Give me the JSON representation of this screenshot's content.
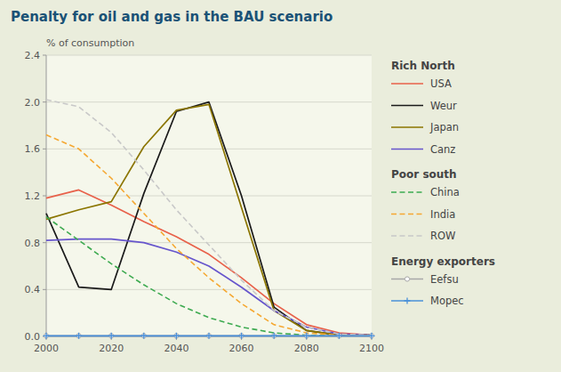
{
  "chart_data": {
    "type": "line",
    "title": "Penalty for oil and gas in the BAU scenario",
    "y_label": "% of consumption",
    "x": [
      2000,
      2010,
      2020,
      2030,
      2040,
      2050,
      2060,
      2070,
      2080,
      2090,
      2100
    ],
    "xlim": [
      2000,
      2100
    ],
    "xticks": [
      2000,
      2020,
      2040,
      2060,
      2080,
      2100
    ],
    "ylim": [
      0,
      2.4
    ],
    "yticks": [
      {
        "value": 0,
        "label": "0.0"
      },
      0.4,
      0.8,
      1.2,
      1.6,
      {
        "value": 2,
        "label": "2.0"
      },
      2.4
    ],
    "grid": true,
    "series": [
      {
        "name": "USA",
        "group": "Rich North",
        "color": "#e8614a",
        "line_style": "solid",
        "values": [
          1.18,
          1.25,
          1.12,
          0.98,
          0.85,
          0.7,
          0.5,
          0.28,
          0.1,
          0.03,
          0.01
        ]
      },
      {
        "name": "Weur",
        "group": "Rich North",
        "color": "#1a1a1a",
        "line_style": "solid",
        "values": [
          1.05,
          0.42,
          0.4,
          1.22,
          1.92,
          2.0,
          1.2,
          0.25,
          0.05,
          0.01,
          0.01
        ]
      },
      {
        "name": "Japan",
        "group": "Rich North",
        "color": "#8b7500",
        "line_style": "solid",
        "values": [
          1.0,
          1.08,
          1.15,
          1.62,
          1.93,
          1.98,
          1.1,
          0.22,
          0.05,
          0.01,
          0.01
        ]
      },
      {
        "name": "Canz",
        "group": "Rich North",
        "color": "#6655cc",
        "line_style": "solid",
        "values": [
          0.82,
          0.83,
          0.83,
          0.8,
          0.72,
          0.6,
          0.42,
          0.22,
          0.08,
          0.02,
          0.01
        ]
      },
      {
        "name": "China",
        "group": "Poor south",
        "color": "#3daa50",
        "line_style": "dashed",
        "values": [
          1.02,
          0.82,
          0.62,
          0.44,
          0.28,
          0.16,
          0.08,
          0.03,
          0.01,
          0.01,
          0.01
        ]
      },
      {
        "name": "India",
        "group": "Poor south",
        "color": "#f5a832",
        "line_style": "dashed",
        "values": [
          1.72,
          1.6,
          1.35,
          1.05,
          0.75,
          0.5,
          0.28,
          0.1,
          0.03,
          0.01,
          0.01
        ]
      },
      {
        "name": "ROW",
        "group": "Poor south",
        "color": "#c8c8c8",
        "line_style": "dashed",
        "values": [
          2.02,
          1.96,
          1.74,
          1.42,
          1.08,
          0.78,
          0.48,
          0.22,
          0.08,
          0.02,
          0.01
        ]
      },
      {
        "name": "Eefsu",
        "group": "Energy exporters",
        "color": "#a8a8a8",
        "line_style": "solid",
        "marker": "circle",
        "values": [
          0.005,
          0.005,
          0.005,
          0.005,
          0.005,
          0.005,
          0.005,
          0.005,
          0.005,
          0.005,
          0.005
        ]
      },
      {
        "name": "Mopec",
        "group": "Energy exporters",
        "color": "#4a90d9",
        "line_style": "solid",
        "marker": "plus",
        "values": [
          0.005,
          0.005,
          0.005,
          0.005,
          0.005,
          0.005,
          0.005,
          0.005,
          0.005,
          0.005,
          0.005
        ]
      }
    ]
  }
}
